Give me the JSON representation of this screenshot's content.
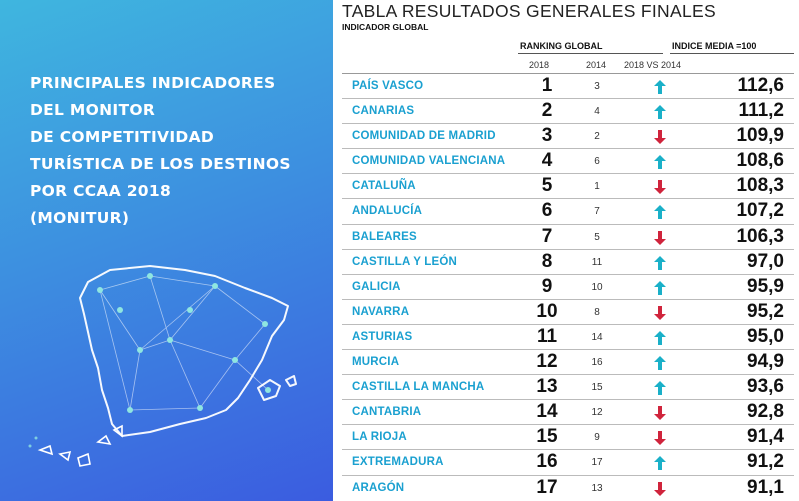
{
  "left": {
    "title_lines": [
      "PRINCIPALES INDICADORES",
      "DEL MONITOR",
      "DE COMPETITIVIDAD",
      "TURÍSTICA DE LOS DESTINOS",
      "POR CCAA 2018",
      "(MONITUR)"
    ]
  },
  "table": {
    "title": "TABLA RESULTADOS GENERALES FINALES",
    "subtitle": "INDICADOR GLOBAL",
    "header_ranking": "RANKING GLOBAL",
    "header_indice": "INDICE MEDIA =100",
    "col_2018": "2018",
    "col_2014": "2014",
    "col_trend": "2018 VS 2014",
    "colors": {
      "region": "#1aa0d0",
      "up": "#1ab0c8",
      "down": "#d0243c"
    },
    "rows": [
      {
        "region": "PAÍS VASCO",
        "r2018": "1",
        "r2014": "3",
        "trend": "up",
        "indice": "112,6"
      },
      {
        "region": "CANARIAS",
        "r2018": "2",
        "r2014": "4",
        "trend": "up",
        "indice": "111,2"
      },
      {
        "region": "COMUNIDAD DE MADRID",
        "r2018": "3",
        "r2014": "2",
        "trend": "down",
        "indice": "109,9"
      },
      {
        "region": "COMUNIDAD VALENCIANA",
        "r2018": "4",
        "r2014": "6",
        "trend": "up",
        "indice": "108,6"
      },
      {
        "region": "CATALUÑA",
        "r2018": "5",
        "r2014": "1",
        "trend": "down",
        "indice": "108,3"
      },
      {
        "region": "ANDALUCÍA",
        "r2018": "6",
        "r2014": "7",
        "trend": "up",
        "indice": "107,2"
      },
      {
        "region": "BALEARES",
        "r2018": "7",
        "r2014": "5",
        "trend": "down",
        "indice": "106,3"
      },
      {
        "region": "CASTILLA Y LEÓN",
        "r2018": "8",
        "r2014": "11",
        "trend": "up",
        "indice": "97,0"
      },
      {
        "region": "GALICIA",
        "r2018": "9",
        "r2014": "10",
        "trend": "up",
        "indice": "95,9"
      },
      {
        "region": "NAVARRA",
        "r2018": "10",
        "r2014": "8",
        "trend": "down",
        "indice": "95,2"
      },
      {
        "region": "ASTURIAS",
        "r2018": "11",
        "r2014": "14",
        "trend": "up",
        "indice": "95,0"
      },
      {
        "region": "MURCIA",
        "r2018": "12",
        "r2014": "16",
        "trend": "up",
        "indice": "94,9"
      },
      {
        "region": "CASTILLA LA MANCHA",
        "r2018": "13",
        "r2014": "15",
        "trend": "up",
        "indice": "93,6"
      },
      {
        "region": "CANTABRIA",
        "r2018": "14",
        "r2014": "12",
        "trend": "down",
        "indice": "92,8"
      },
      {
        "region": "LA RIOJA",
        "r2018": "15",
        "r2014": "9",
        "trend": "down",
        "indice": "91,4"
      },
      {
        "region": "EXTREMADURA",
        "r2018": "16",
        "r2014": "17",
        "trend": "up",
        "indice": "91,2"
      },
      {
        "region": "ARAGÓN",
        "r2018": "17",
        "r2014": "13",
        "trend": "down",
        "indice": "91,1"
      }
    ]
  }
}
